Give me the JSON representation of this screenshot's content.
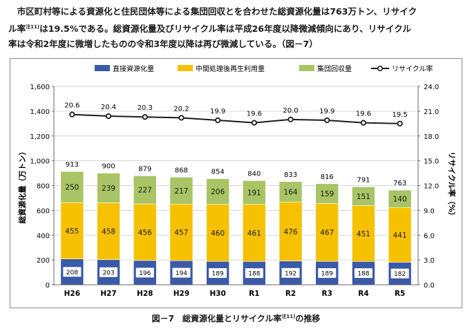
{
  "intro": {
    "line1": "市区町村等による資源化と住民団体等による集団回収とを合わせた総資源化量は763万トン、リサイク",
    "line2_a": "ル率",
    "line2_note": "注11)",
    "line2_b": "は19.5%である。総資源化量及びリサイクル率は平成26年度以降微減傾向にあり、リサイクル",
    "line3": "率は令和2年度に微増したものの令和3年度以降は再び微減している。（図－7）"
  },
  "caption": {
    "prefix": "図－7　総資源化量とリサイクル率",
    "note": "注11)",
    "suffix": "の推移"
  },
  "chart_data": {
    "type": "bar",
    "stacked": true,
    "title": "",
    "categories": [
      "H26",
      "H27",
      "H28",
      "H29",
      "H30",
      "R1",
      "R2",
      "R3",
      "R4",
      "R5"
    ],
    "series": [
      {
        "name": "直接資源化量",
        "color": "#3a5aa8",
        "values": [
          208,
          203,
          196,
          194,
          189,
          188,
          192,
          189,
          188,
          182
        ]
      },
      {
        "name": "中間処理後再生利用量",
        "color": "#f6c100",
        "values": [
          455,
          458,
          456,
          457,
          460,
          461,
          476,
          467,
          451,
          441
        ]
      },
      {
        "name": "集団回収量",
        "color": "#a8c465",
        "values": [
          250,
          239,
          227,
          217,
          206,
          191,
          164,
          159,
          151,
          140
        ]
      }
    ],
    "totals": [
      913,
      900,
      879,
      868,
      854,
      840,
      833,
      816,
      791,
      763
    ],
    "line": {
      "name": "リサイクル率",
      "color": "#1a1a1a",
      "axis": "right",
      "values": [
        20.6,
        20.4,
        20.3,
        20.2,
        19.9,
        19.6,
        20.0,
        19.9,
        19.6,
        19.5
      ]
    },
    "ylabel_left": "総資源化量（万トン）",
    "ylabel_right": "リサイクル率（%）",
    "ylim_left": [
      0,
      1600
    ],
    "ylim_right": [
      0.0,
      24.0
    ],
    "yticks_left": [
      "0",
      "200",
      "400",
      "600",
      "800",
      "1,000",
      "1,200",
      "1,400",
      "1,600"
    ],
    "yticks_right": [
      "0.0",
      "3.0",
      "6.0",
      "9.0",
      "12.0",
      "15.0",
      "18.0",
      "21.0",
      "24.0"
    ],
    "grid": true,
    "legend": "top"
  }
}
